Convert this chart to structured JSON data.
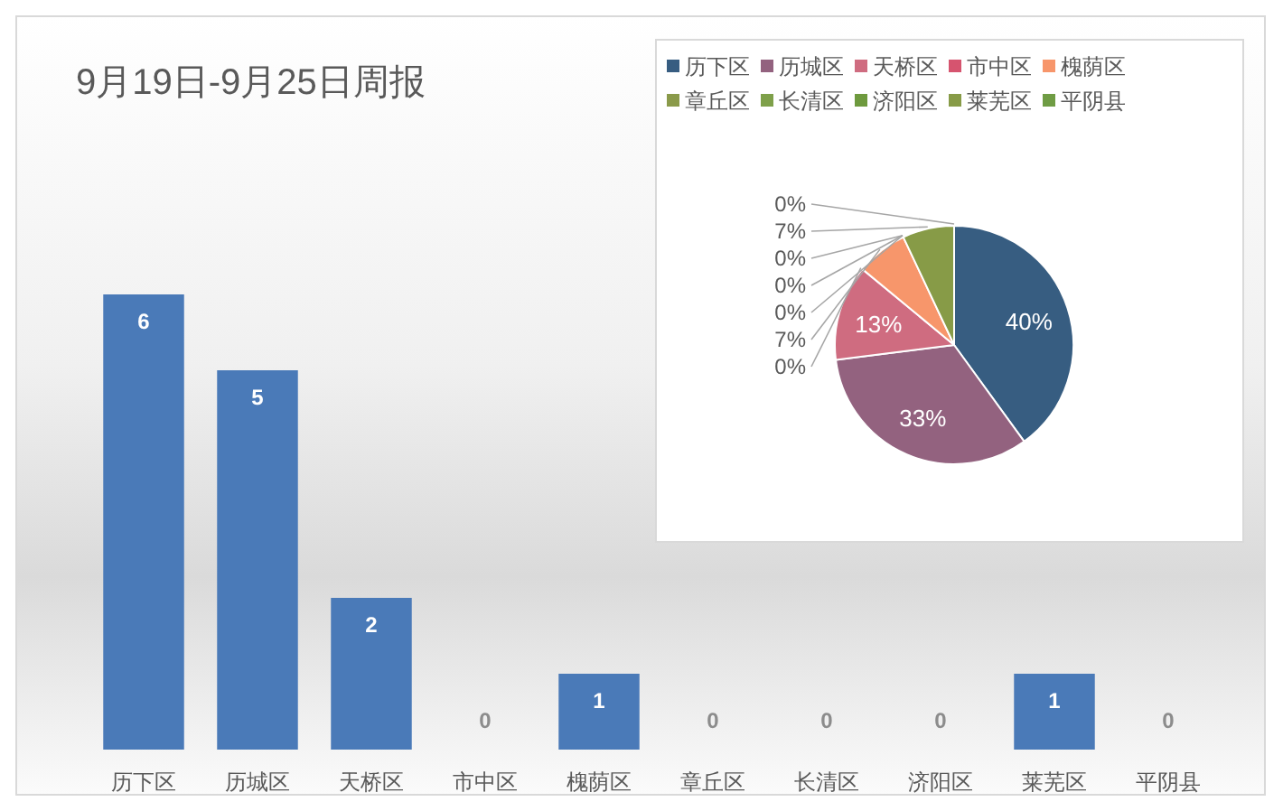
{
  "chart_data": [
    {
      "type": "bar",
      "title": "9月19日-9月25日周报",
      "categories": [
        "历下区",
        "历城区",
        "天桥区",
        "市中区",
        "槐荫区",
        "章丘区",
        "长清区",
        "济阳区",
        "莱芜区",
        "平阴县"
      ],
      "values": [
        6,
        5,
        2,
        0,
        1,
        0,
        0,
        0,
        1,
        0
      ],
      "color": "#4a7ab8",
      "data_labels": true
    },
    {
      "type": "pie",
      "categories": [
        "历下区",
        "历城区",
        "天桥区",
        "市中区",
        "槐荫区",
        "章丘区",
        "长清区",
        "济阳区",
        "莱芜区",
        "平阴县"
      ],
      "values": [
        40,
        33,
        13,
        0,
        7,
        0,
        0,
        0,
        7,
        0
      ],
      "colors": [
        "#375d81",
        "#93627f",
        "#cf6c80",
        "#d6546f",
        "#f7966b",
        "#8a9a4a",
        "#7ea04a",
        "#6e9a3e",
        "#879b47",
        "#6f9c44"
      ],
      "value_labels": [
        "40%",
        "33%",
        "13%",
        "0%",
        "7%",
        "0%",
        "0%",
        "0%",
        "7%",
        "0%"
      ],
      "legend": "top"
    }
  ]
}
